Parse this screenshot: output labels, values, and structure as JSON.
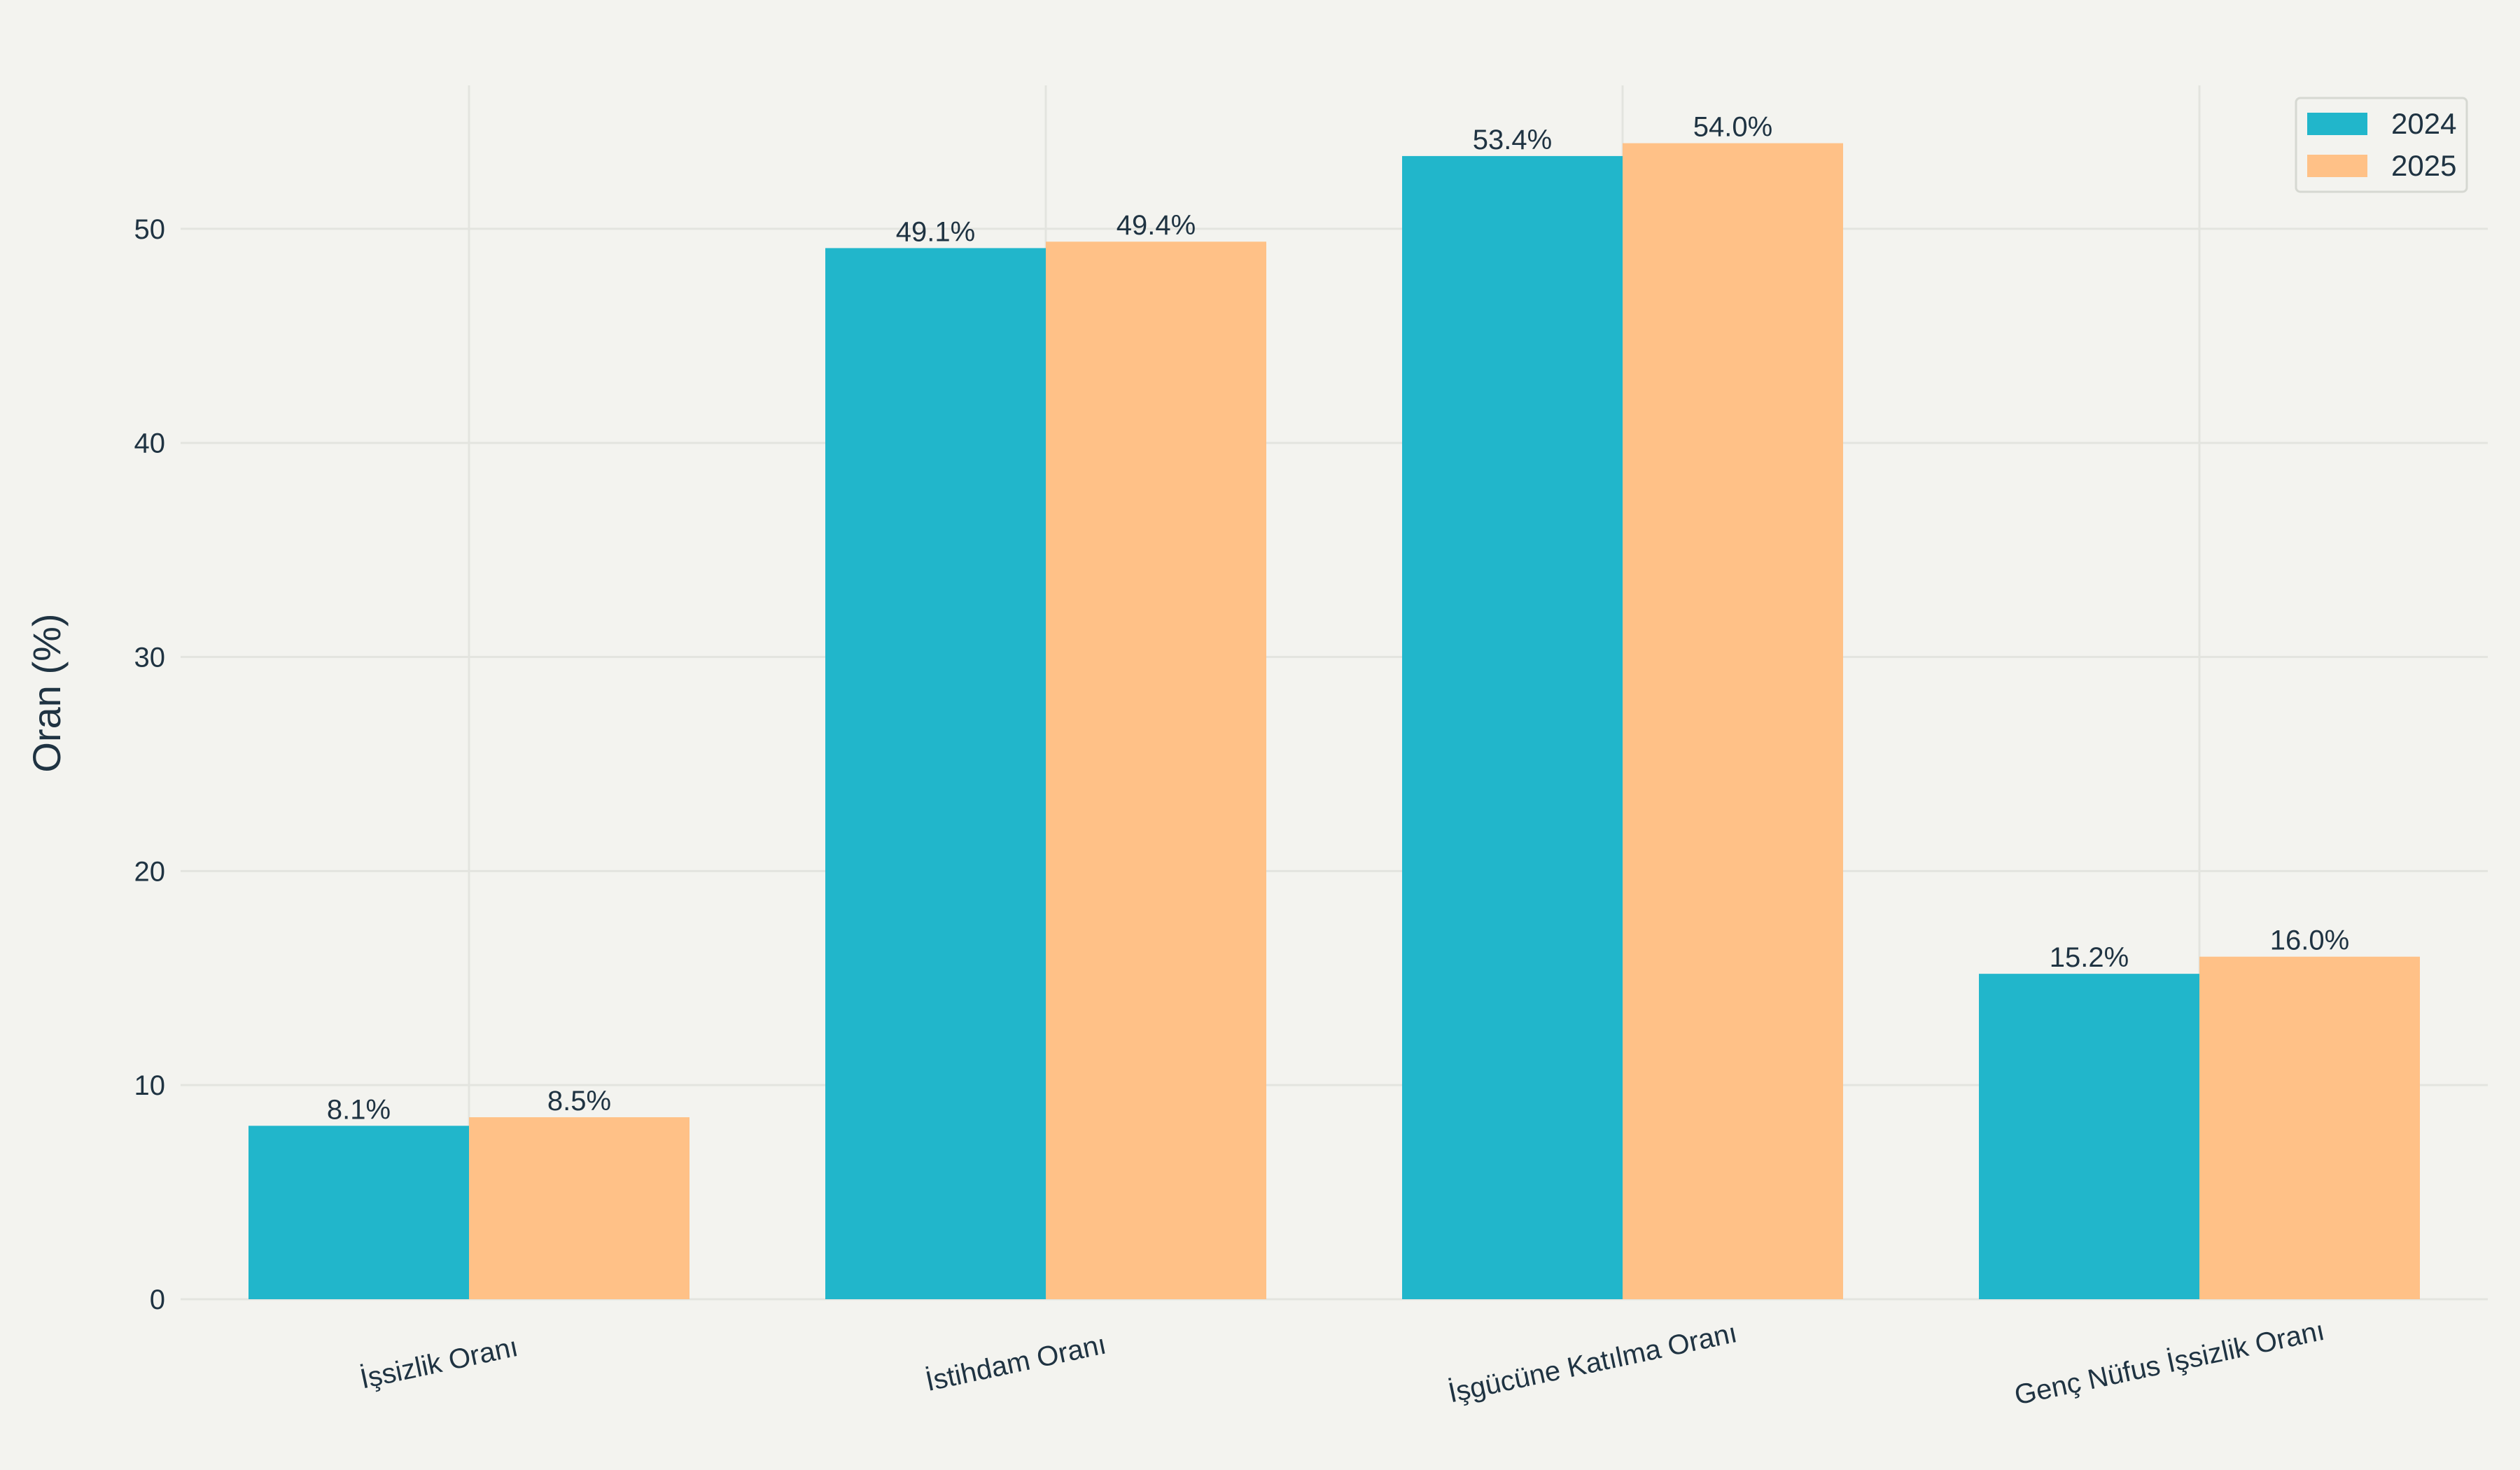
{
  "chart_data": {
    "type": "bar",
    "title": "",
    "xlabel": "",
    "ylabel": "Oran (%)",
    "ylim": [
      0,
      56.7
    ],
    "yticks": [
      0,
      10,
      20,
      30,
      40,
      50
    ],
    "categories": [
      "İşsizlik Oranı",
      "İstihdam Oranı",
      "İşgücüne Katılma Oranı",
      "Genç Nüfus İşsizlik Oranı"
    ],
    "series": [
      {
        "name": "2024",
        "color": "#21b6cb",
        "values": [
          8.1,
          49.1,
          53.4,
          15.2
        ],
        "labels": [
          "8.1%",
          "49.1%",
          "53.4%",
          "15.2%"
        ]
      },
      {
        "name": "2025",
        "color": "#ffc187",
        "values": [
          8.5,
          49.4,
          54.0,
          16.0
        ],
        "labels": [
          "8.5%",
          "49.4%",
          "54.0%",
          "16.0%"
        ]
      }
    ],
    "grid": true,
    "legend": "top-right",
    "background": "#f3f3ef",
    "grid_color": "#e3e4df",
    "text_color": "#1f3342"
  }
}
